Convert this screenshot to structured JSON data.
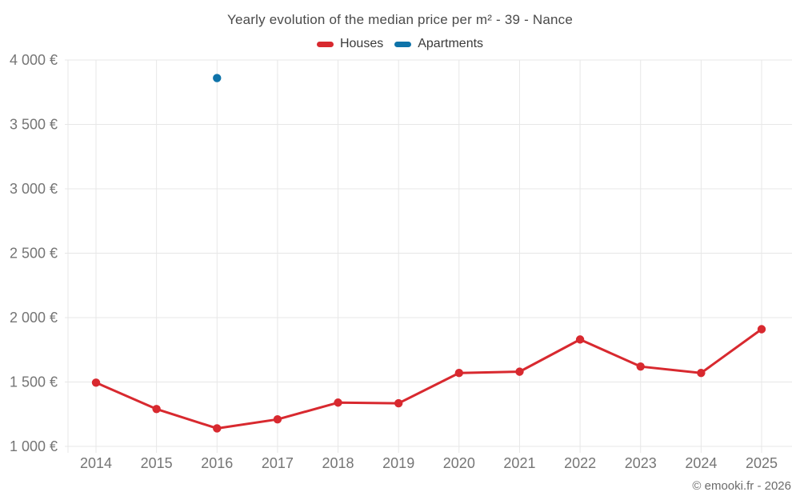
{
  "chart": {
    "title": "Yearly evolution of the median price per m² - 39 - Nance"
  },
  "footer": {
    "copyright": "© emooki.fr - 2026"
  },
  "colors": {
    "background": "#ffffff",
    "grid": "#e7e7e7",
    "axis_label": "#757575",
    "title": "#4a4a4a",
    "legend_text": "#3a3a3a",
    "footer": "#6b6b6b",
    "houses": "#d8292f",
    "apartments": "#0e73a9"
  },
  "chart_data": {
    "type": "line",
    "title": "Yearly evolution of the median price per m² - 39 - Nance",
    "xlabel": "",
    "ylabel": "",
    "categories": [
      "2014",
      "2015",
      "2016",
      "2017",
      "2018",
      "2019",
      "2020",
      "2021",
      "2022",
      "2023",
      "2024",
      "2025"
    ],
    "series": [
      {
        "name": "Houses",
        "color": "#d8292f",
        "marker": "circle",
        "line": true,
        "values": [
          1495,
          1290,
          1140,
          1210,
          1340,
          1335,
          1570,
          1580,
          1830,
          1620,
          1570,
          1910
        ]
      },
      {
        "name": "Apartments",
        "color": "#0e73a9",
        "marker": "circle",
        "line": false,
        "values": [
          null,
          null,
          3860,
          null,
          null,
          null,
          null,
          null,
          null,
          null,
          null,
          null
        ]
      }
    ],
    "ylim": [
      1000,
      4000
    ],
    "ytick_step": 500,
    "ytick_labels": [
      "1 000 €",
      "1 500 €",
      "2 000 €",
      "2 500 €",
      "3 000 €",
      "3 500 €",
      "4 000 €"
    ],
    "grid": true,
    "legend_position": "top"
  }
}
